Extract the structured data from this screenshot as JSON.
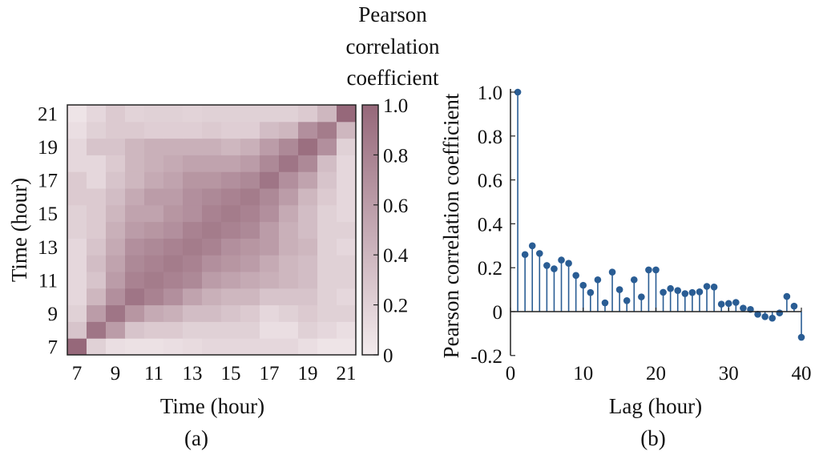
{
  "chart_data": [
    {
      "type": "heatmap",
      "panel_label": "(a)",
      "xlabel": "Time (hour)",
      "ylabel": "Time (hour)",
      "hours": [
        7,
        8,
        9,
        10,
        11,
        12,
        13,
        14,
        15,
        16,
        17,
        18,
        19,
        20,
        21
      ],
      "x_tick_labels": [
        "7",
        "9",
        "11",
        "13",
        "15",
        "17",
        "19",
        "21"
      ],
      "y_tick_labels": [
        "7",
        "9",
        "11",
        "13",
        "15",
        "17",
        "19",
        "21"
      ],
      "colorbar": {
        "title": [
          "Pearson",
          "correlation",
          "coefficient"
        ],
        "range": [
          0,
          1
        ],
        "tick_labels": [
          "0",
          "0.2",
          "0.4",
          "0.6",
          "0.8",
          "1.0"
        ],
        "color_low": "#f3ebed",
        "color_high": "#96687a"
      },
      "rows_from_hour_7": [
        [
          1.0,
          0.2,
          0.1,
          0.08,
          0.08,
          0.1,
          0.12,
          0.15,
          0.15,
          0.15,
          0.15,
          0.15,
          0.1,
          0.05,
          0.05
        ],
        [
          0.3,
          0.9,
          0.6,
          0.3,
          0.25,
          0.25,
          0.2,
          0.2,
          0.2,
          0.2,
          0.1,
          0.1,
          0.2,
          0.15,
          0.1
        ],
        [
          0.2,
          0.6,
          0.9,
          0.65,
          0.5,
          0.45,
          0.35,
          0.35,
          0.3,
          0.25,
          0.15,
          0.2,
          0.25,
          0.2,
          0.2
        ],
        [
          0.15,
          0.4,
          0.7,
          0.9,
          0.8,
          0.7,
          0.55,
          0.45,
          0.4,
          0.4,
          0.3,
          0.3,
          0.3,
          0.2,
          0.15
        ],
        [
          0.15,
          0.3,
          0.6,
          0.8,
          0.85,
          0.8,
          0.75,
          0.6,
          0.55,
          0.5,
          0.45,
          0.4,
          0.35,
          0.2,
          0.2
        ],
        [
          0.15,
          0.35,
          0.55,
          0.75,
          0.8,
          0.85,
          0.8,
          0.7,
          0.65,
          0.6,
          0.5,
          0.4,
          0.35,
          0.2,
          0.2
        ],
        [
          0.15,
          0.3,
          0.5,
          0.7,
          0.75,
          0.8,
          0.85,
          0.8,
          0.7,
          0.65,
          0.6,
          0.45,
          0.4,
          0.2,
          0.15
        ],
        [
          0.2,
          0.25,
          0.45,
          0.6,
          0.65,
          0.7,
          0.8,
          0.85,
          0.8,
          0.75,
          0.6,
          0.45,
          0.35,
          0.2,
          0.2
        ],
        [
          0.2,
          0.25,
          0.4,
          0.55,
          0.55,
          0.65,
          0.7,
          0.8,
          0.85,
          0.8,
          0.7,
          0.5,
          0.35,
          0.2,
          0.15
        ],
        [
          0.25,
          0.25,
          0.35,
          0.5,
          0.6,
          0.6,
          0.7,
          0.75,
          0.8,
          0.85,
          0.75,
          0.6,
          0.4,
          0.25,
          0.15
        ],
        [
          0.25,
          0.15,
          0.3,
          0.4,
          0.5,
          0.55,
          0.65,
          0.65,
          0.7,
          0.75,
          0.9,
          0.7,
          0.55,
          0.3,
          0.15
        ],
        [
          0.15,
          0.15,
          0.25,
          0.4,
          0.45,
          0.5,
          0.55,
          0.55,
          0.55,
          0.6,
          0.75,
          0.9,
          0.75,
          0.35,
          0.15
        ],
        [
          0.15,
          0.3,
          0.3,
          0.4,
          0.45,
          0.45,
          0.45,
          0.45,
          0.4,
          0.45,
          0.6,
          0.75,
          0.95,
          0.7,
          0.2
        ],
        [
          0.1,
          0.2,
          0.25,
          0.25,
          0.22,
          0.22,
          0.22,
          0.25,
          0.22,
          0.22,
          0.35,
          0.4,
          0.7,
          0.85,
          0.4
        ],
        [
          0.05,
          0.15,
          0.25,
          0.18,
          0.2,
          0.2,
          0.18,
          0.2,
          0.2,
          0.2,
          0.2,
          0.2,
          0.25,
          0.4,
          1.0
        ]
      ]
    },
    {
      "type": "stem",
      "panel_label": "(b)",
      "xlabel": "Lag (hour)",
      "ylabel": "Pearson correlation coefficient",
      "xlim": [
        0,
        40
      ],
      "ylim": [
        -0.2,
        1.0
      ],
      "x_tick_labels": [
        "0",
        "10",
        "20",
        "30",
        "40"
      ],
      "y_tick_labels": [
        "-0.2",
        "0",
        "0.2",
        "0.4",
        "0.6",
        "0.8",
        "1.0"
      ],
      "color": "#2a5d94",
      "x": [
        1,
        2,
        3,
        4,
        5,
        6,
        7,
        8,
        9,
        10,
        11,
        12,
        13,
        14,
        15,
        16,
        17,
        18,
        19,
        20,
        21,
        22,
        23,
        24,
        25,
        26,
        27,
        28,
        29,
        30,
        31,
        32,
        33,
        34,
        35,
        36,
        37,
        38,
        39,
        40
      ],
      "y": [
        1.0,
        0.26,
        0.3,
        0.265,
        0.21,
        0.195,
        0.235,
        0.22,
        0.165,
        0.12,
        0.087,
        0.145,
        0.04,
        0.18,
        0.1,
        0.05,
        0.145,
        0.067,
        0.19,
        0.19,
        0.088,
        0.105,
        0.096,
        0.082,
        0.087,
        0.09,
        0.115,
        0.112,
        0.034,
        0.037,
        0.042,
        0.016,
        0.01,
        -0.012,
        -0.023,
        -0.03,
        -0.006,
        0.069,
        0.025,
        -0.117
      ]
    }
  ]
}
